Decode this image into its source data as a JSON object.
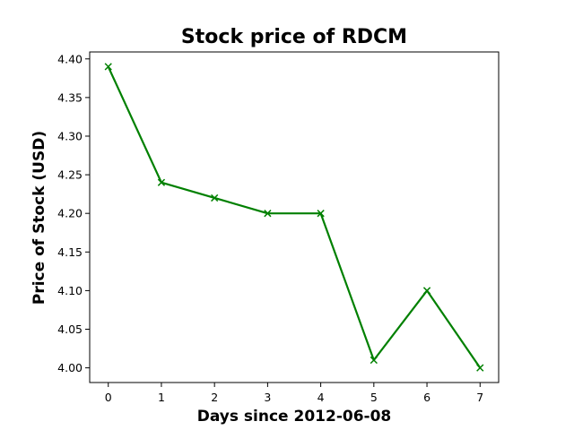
{
  "chart_data": {
    "type": "line",
    "title": "Stock price of RDCM",
    "xlabel": "Days since 2012-06-08",
    "ylabel": "Price of Stock (USD)",
    "x": [
      0,
      1,
      2,
      3,
      4,
      5,
      6,
      7
    ],
    "series": [
      {
        "values": [
          4.39,
          4.24,
          4.22,
          4.2,
          4.2,
          4.01,
          4.1,
          4.0
        ],
        "color": "#008000",
        "marker": "x"
      }
    ],
    "xticks": [
      "0",
      "1",
      "2",
      "3",
      "4",
      "5",
      "6",
      "7"
    ],
    "yticks": [
      "4.00",
      "4.05",
      "4.10",
      "4.15",
      "4.20",
      "4.25",
      "4.30",
      "4.35",
      "4.40"
    ],
    "xlim": [
      -0.35,
      7.35
    ],
    "ylim": [
      3.981,
      4.409
    ],
    "grid": false
  }
}
